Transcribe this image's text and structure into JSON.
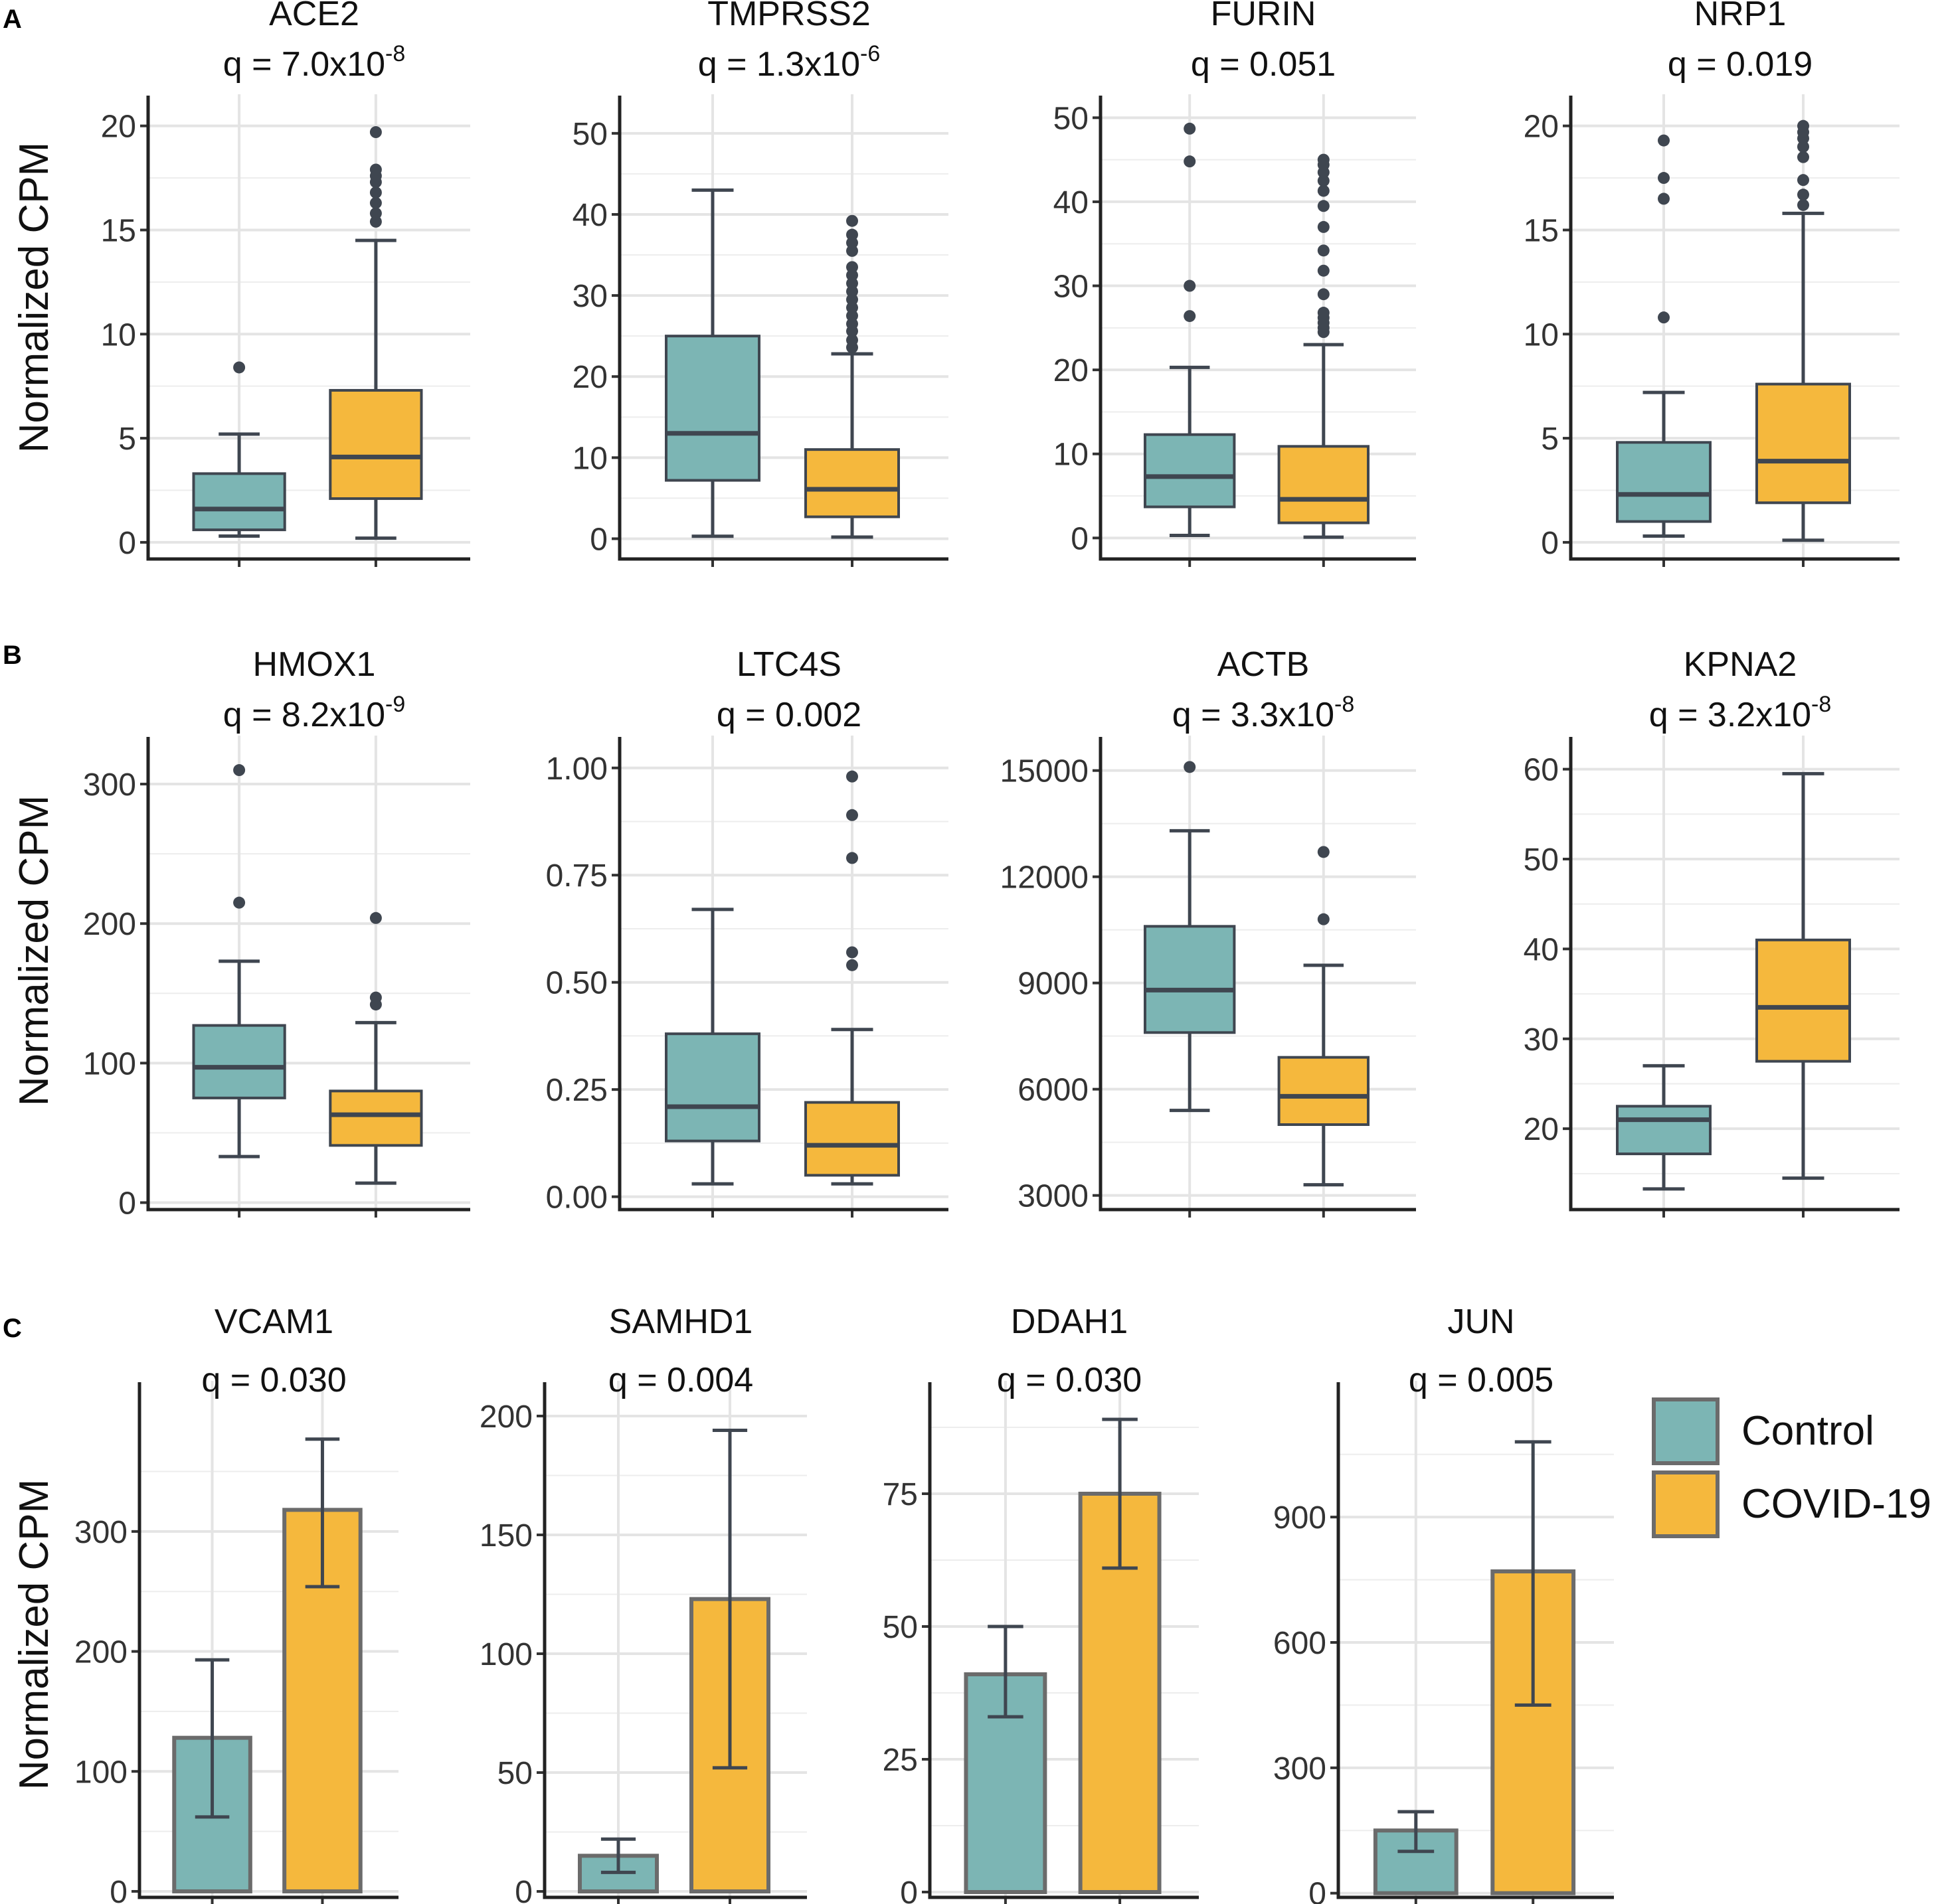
{
  "figure": {
    "panel_labels": [
      "A",
      "B",
      "C"
    ],
    "ylabel": "Normalized CPM",
    "legend": [
      {
        "label": "Control",
        "color": "#7cb5b4"
      },
      {
        "label": "COVID-19",
        "color": "#f5b83d"
      }
    ]
  },
  "colors": {
    "control": "#7cb5b4",
    "covid": "#f5b83d",
    "stroke": "#3f4650"
  },
  "chart_data": [
    {
      "type": "box",
      "panel": "A",
      "title": "ACE2",
      "q_base": "q = 7.0x10",
      "q_exp": "-8",
      "ylim": [
        -0.8,
        21.2
      ],
      "yticks": [
        0,
        5,
        10,
        15,
        20
      ],
      "ytick_labels": [
        "0",
        "5",
        "10",
        "15",
        "20"
      ],
      "groups": [
        {
          "name": "Control",
          "min": 0.3,
          "q1": 0.6,
          "median": 1.6,
          "q3": 3.3,
          "max": 5.2,
          "outliers": [
            8.4
          ]
        },
        {
          "name": "COVID-19",
          "min": 0.2,
          "q1": 2.1,
          "median": 4.1,
          "q3": 7.3,
          "max": 14.5,
          "outliers": [
            15.4,
            15.8,
            16.3,
            16.8,
            17.3,
            17.6,
            17.9,
            19.7
          ]
        }
      ]
    },
    {
      "type": "box",
      "panel": "A",
      "title": "TMPRSS2",
      "q_base": "q = 1.3x10",
      "q_exp": "-6",
      "ylim": [
        -2.5,
        54
      ],
      "yticks": [
        0,
        10,
        20,
        30,
        40,
        50
      ],
      "ytick_labels": [
        "0",
        "10",
        "20",
        "30",
        "40",
        "50"
      ],
      "groups": [
        {
          "name": "Control",
          "min": 0.3,
          "q1": 7.2,
          "median": 13.0,
          "q3": 25.0,
          "max": 43.0,
          "outliers": []
        },
        {
          "name": "COVID-19",
          "min": 0.2,
          "q1": 2.7,
          "median": 6.1,
          "q3": 11.0,
          "max": 22.8,
          "outliers": [
            23.6,
            24.5,
            25.6,
            26.5,
            27.5,
            28.5,
            29.5,
            30.5,
            31.5,
            32.5,
            33.5,
            35.5,
            36.5,
            37.5,
            39.2
          ]
        }
      ]
    },
    {
      "type": "box",
      "panel": "A",
      "title": "FURIN",
      "q_base": "q = 0.051",
      "q_exp": "",
      "ylim": [
        -2.5,
        52
      ],
      "yticks": [
        0,
        10,
        20,
        30,
        40,
        50
      ],
      "ytick_labels": [
        "0",
        "10",
        "20",
        "30",
        "40",
        "50"
      ],
      "groups": [
        {
          "name": "Control",
          "min": 0.3,
          "q1": 3.7,
          "median": 7.3,
          "q3": 12.3,
          "max": 20.3,
          "outliers": [
            26.4,
            30.0,
            44.8,
            48.7
          ]
        },
        {
          "name": "COVID-19",
          "min": 0.1,
          "q1": 1.8,
          "median": 4.6,
          "q3": 10.9,
          "max": 23.0,
          "outliers": [
            24.5,
            25.0,
            25.6,
            26.2,
            26.8,
            29.0,
            31.8,
            34.2,
            37.0,
            39.5,
            41.3,
            42.5,
            43.5,
            44.4,
            45.0
          ]
        }
      ]
    },
    {
      "type": "box",
      "panel": "A",
      "title": "NRP1",
      "q_base": "q = 0.019",
      "q_exp": "",
      "ylim": [
        -0.8,
        21.2
      ],
      "yticks": [
        0,
        5,
        10,
        15,
        20
      ],
      "ytick_labels": [
        "0",
        "5",
        "10",
        "15",
        "20"
      ],
      "groups": [
        {
          "name": "Control",
          "min": 0.3,
          "q1": 1.0,
          "median": 2.3,
          "q3": 4.8,
          "max": 7.2,
          "outliers": [
            10.8,
            16.5,
            17.5,
            19.3
          ]
        },
        {
          "name": "COVID-19",
          "min": 0.1,
          "q1": 1.9,
          "median": 3.9,
          "q3": 7.6,
          "max": 15.8,
          "outliers": [
            16.2,
            16.7,
            17.4,
            18.5,
            19.0,
            19.4,
            19.7,
            20.0
          ]
        }
      ]
    },
    {
      "type": "box",
      "panel": "B",
      "title": "HMOX1",
      "q_base": "q = 8.2x10",
      "q_exp": "-9",
      "ylim": [
        -5,
        330
      ],
      "yticks": [
        0,
        100,
        200,
        300
      ],
      "ytick_labels": [
        "0",
        "100",
        "200",
        "300"
      ],
      "groups": [
        {
          "name": "Control",
          "min": 33,
          "q1": 75,
          "median": 97,
          "q3": 127,
          "max": 173,
          "outliers": [
            215,
            310
          ]
        },
        {
          "name": "COVID-19",
          "min": 14,
          "q1": 41,
          "median": 63,
          "q3": 80,
          "max": 129,
          "outliers": [
            142,
            147,
            204
          ]
        }
      ]
    },
    {
      "type": "box",
      "panel": "B",
      "title": "LTC4S",
      "q_base": "q = 0.002",
      "q_exp": "",
      "ylim": [
        -0.03,
        1.06
      ],
      "yticks": [
        0,
        0.25,
        0.5,
        0.75,
        1.0
      ],
      "ytick_labels": [
        "0.00",
        "0.25",
        "0.50",
        "0.75",
        "1.00"
      ],
      "groups": [
        {
          "name": "Control",
          "min": 0.03,
          "q1": 0.13,
          "median": 0.21,
          "q3": 0.38,
          "max": 0.67,
          "outliers": []
        },
        {
          "name": "COVID-19",
          "min": 0.03,
          "q1": 0.05,
          "median": 0.12,
          "q3": 0.22,
          "max": 0.39,
          "outliers": [
            0.54,
            0.57,
            0.79,
            0.89,
            0.98
          ]
        }
      ]
    },
    {
      "type": "box",
      "panel": "B",
      "title": "ACTB",
      "q_base": "q = 3.3x10",
      "q_exp": "-8",
      "ylim": [
        2600,
        15800
      ],
      "yticks": [
        3000,
        6000,
        9000,
        12000,
        15000
      ],
      "ytick_labels": [
        "3000",
        "6000",
        "9000",
        "12000",
        "15000"
      ],
      "groups": [
        {
          "name": "Control",
          "min": 5400,
          "q1": 7600,
          "median": 8800,
          "q3": 10600,
          "max": 13300,
          "outliers": [
            15100
          ]
        },
        {
          "name": "COVID-19",
          "min": 3300,
          "q1": 5000,
          "median": 5800,
          "q3": 6900,
          "max": 9500,
          "outliers": [
            10800,
            12700
          ]
        }
      ]
    },
    {
      "type": "box",
      "panel": "B",
      "title": "KPNA2",
      "q_base": "q = 3.2x10",
      "q_exp": "-8",
      "ylim": [
        11,
        63
      ],
      "yticks": [
        20,
        30,
        40,
        50,
        60
      ],
      "ytick_labels": [
        "20",
        "30",
        "40",
        "50",
        "60"
      ],
      "groups": [
        {
          "name": "Control",
          "min": 13.3,
          "q1": 17.2,
          "median": 21.0,
          "q3": 22.5,
          "max": 27.0,
          "outliers": []
        },
        {
          "name": "COVID-19",
          "min": 14.5,
          "q1": 27.5,
          "median": 33.5,
          "q3": 41.0,
          "max": 59.5,
          "outliers": []
        }
      ]
    },
    {
      "type": "bar",
      "panel": "C",
      "title": "VCAM1",
      "q_base": "q = 0.030",
      "q_exp": "",
      "ylim": [
        -5,
        420
      ],
      "yticks": [
        0,
        100,
        200,
        300
      ],
      "ytick_labels": [
        "0",
        "100",
        "200",
        "300"
      ],
      "categories": [
        "Control",
        "COVID-19"
      ],
      "values": [
        128,
        318
      ],
      "err_low": [
        62,
        254
      ],
      "err_high": [
        193,
        377
      ]
    },
    {
      "type": "bar",
      "panel": "C",
      "title": "SAMHD1",
      "q_base": "q = 0.004",
      "q_exp": "",
      "ylim": [
        -2.5,
        212
      ],
      "yticks": [
        0,
        50,
        100,
        150,
        200
      ],
      "ytick_labels": [
        "0",
        "50",
        "100",
        "150",
        "200"
      ],
      "categories": [
        "Control",
        "COVID-19"
      ],
      "values": [
        15,
        123
      ],
      "err_low": [
        8,
        52
      ],
      "err_high": [
        22,
        194
      ]
    },
    {
      "type": "bar",
      "panel": "C",
      "title": "DDAH1",
      "q_base": "q = 0.030",
      "q_exp": "",
      "ylim": [
        -1,
        95
      ],
      "yticks": [
        0,
        25,
        50,
        75
      ],
      "ytick_labels": [
        "0",
        "25",
        "50",
        "75"
      ],
      "categories": [
        "Control",
        "COVID-19"
      ],
      "values": [
        41,
        75
      ],
      "err_low": [
        33,
        61
      ],
      "err_high": [
        50,
        89
      ]
    },
    {
      "type": "bar",
      "panel": "C",
      "title": "JUN",
      "q_base": "q = 0.005",
      "q_exp": "",
      "ylim": [
        -10,
        1210
      ],
      "yticks": [
        0,
        300,
        600,
        900
      ],
      "ytick_labels": [
        "0",
        "300",
        "600",
        "900"
      ],
      "categories": [
        "Control",
        "COVID-19"
      ],
      "values": [
        150,
        770
      ],
      "err_low": [
        100,
        450
      ],
      "err_high": [
        195,
        1080
      ]
    }
  ]
}
